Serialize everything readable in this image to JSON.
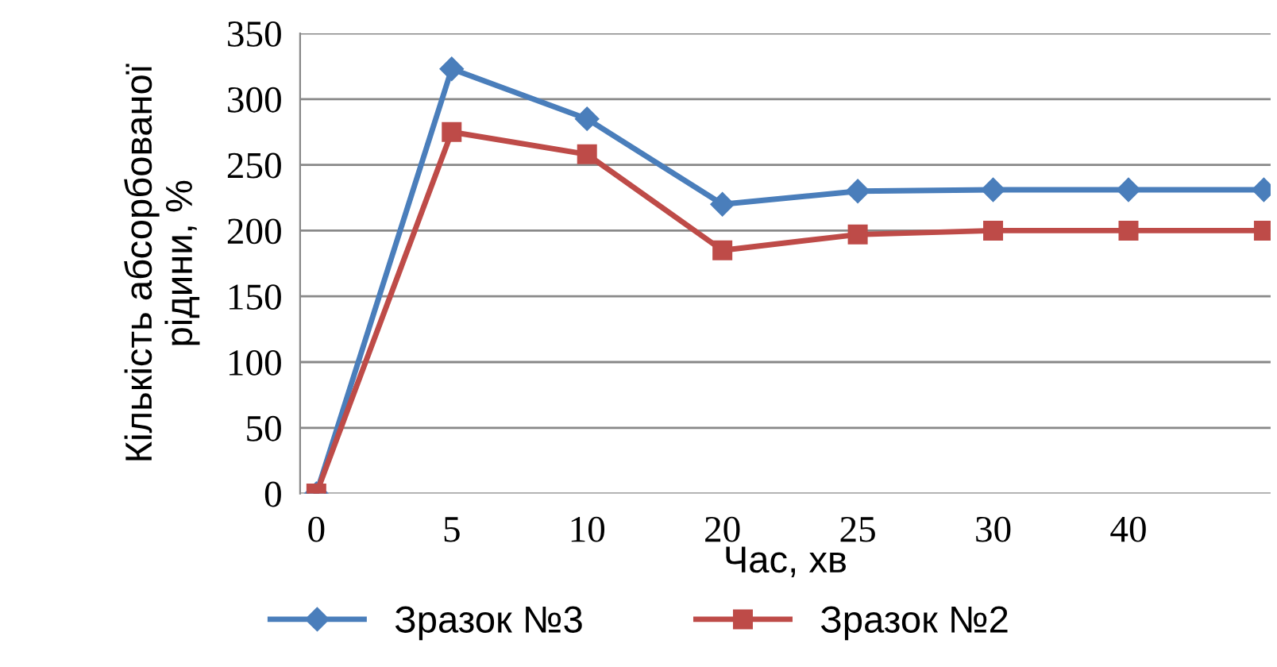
{
  "chart_data": {
    "type": "line",
    "xlabel": "Час, хв",
    "ylabel": "Кількість абсорбованої\nрідини, %",
    "categories": [
      "0",
      "5",
      "10",
      "20",
      "25",
      "30",
      "40",
      null
    ],
    "series": [
      {
        "name": "Зразок №3",
        "color": "#4a7ebb",
        "marker": "diamond",
        "values": [
          0,
          323,
          285,
          220,
          230,
          231,
          231,
          231
        ]
      },
      {
        "name": "Зразок №2",
        "color": "#be4b48",
        "marker": "square",
        "values": [
          0,
          275,
          258,
          185,
          197,
          200,
          200,
          200
        ]
      }
    ],
    "ylim": [
      0,
      350
    ],
    "yticks": [
      0,
      50,
      100,
      150,
      200,
      250,
      300,
      350
    ],
    "grid": "y",
    "legend": "bottom",
    "line_style": "solid"
  }
}
